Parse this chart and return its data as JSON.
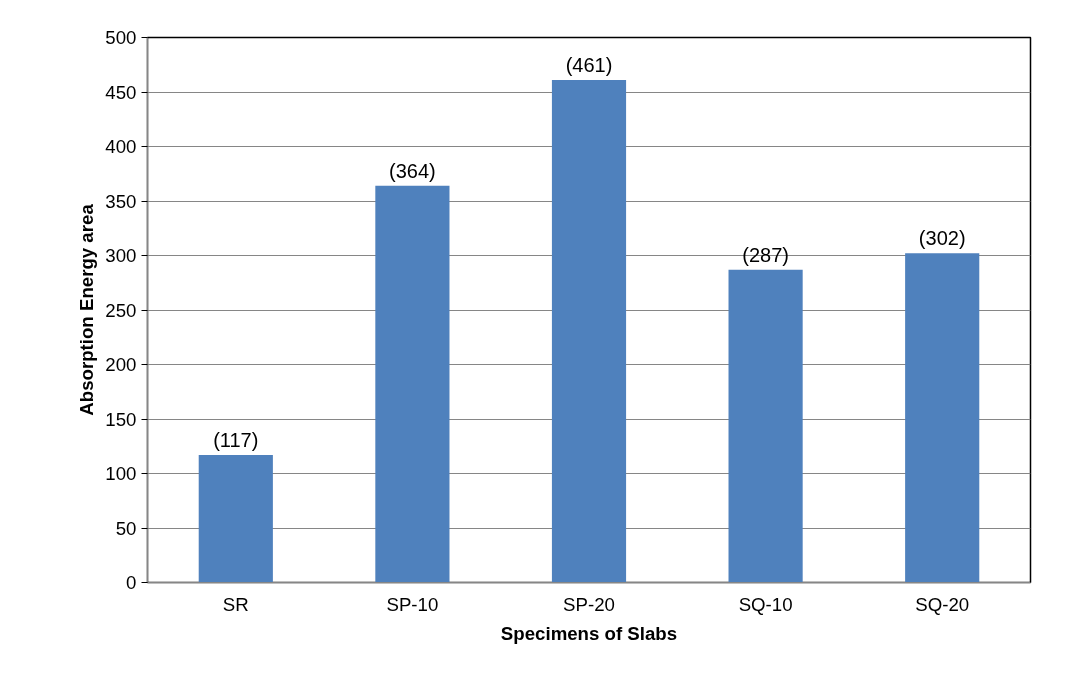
{
  "chart_data": {
    "type": "bar",
    "xlabel": "Specimens of Slabs",
    "ylabel": "Absorption Energy area",
    "categories": [
      "SR",
      "SP-10",
      "SP-20",
      "SQ-10",
      "SQ-20"
    ],
    "values": [
      117,
      364,
      461,
      287,
      302
    ],
    "value_labels": [
      "(117)",
      "(364)",
      "(461)",
      "(287)",
      "(302)"
    ],
    "color": "#4f81bd",
    "ylim": [
      0,
      500
    ],
    "yticks": [
      0,
      50,
      100,
      150,
      200,
      250,
      300,
      350,
      400,
      450,
      500
    ],
    "grid": "y"
  }
}
